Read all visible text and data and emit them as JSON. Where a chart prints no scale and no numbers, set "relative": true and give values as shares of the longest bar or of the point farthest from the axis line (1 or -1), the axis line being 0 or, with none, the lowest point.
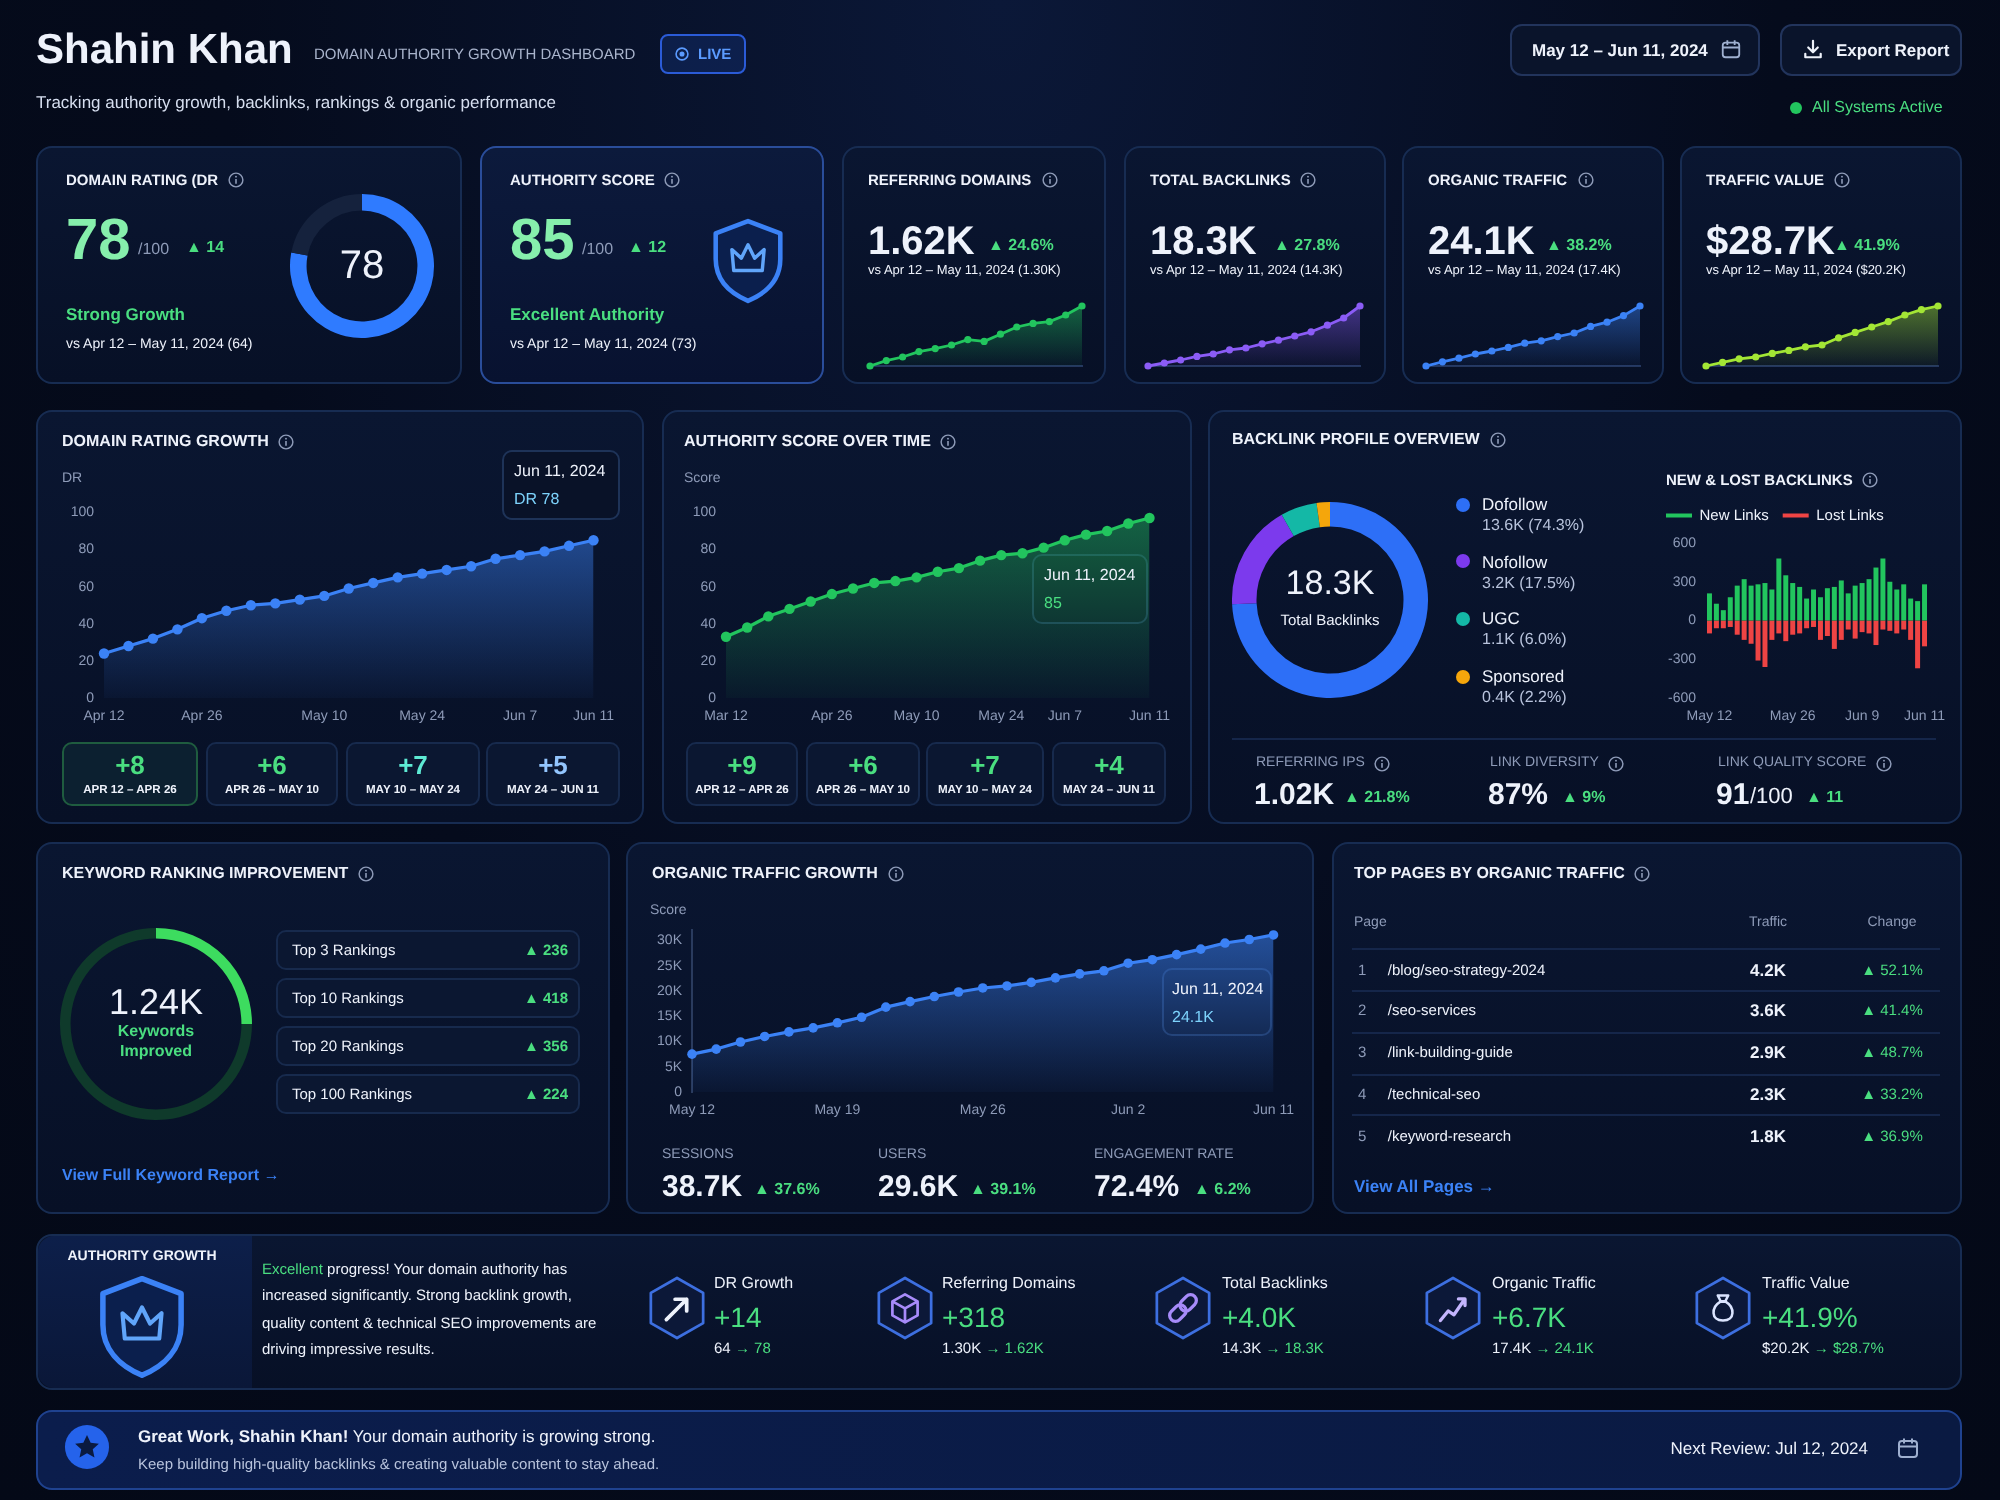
{
  "chart_data": [
    {
      "type": "other",
      "title": "Shahin Khan",
      "subtitle": "DOMAIN AUTHORITY GROWTH DASHBOARD",
      "annotations": [
        "LIVE",
        "Tracking authority growth, backlinks, rankings & organic performance",
        "May 12 – Jun 11, 2024",
        "Export Report",
        "All Systems Active"
      ]
    },
    {
      "type": "donut",
      "title": "DOMAIN RATING (DR",
      "categories": [
        null,
        null
      ],
      "values": [
        78,
        22
      ],
      "colors": [
        "#2f7bff",
        "#15223d"
      ],
      "annotations": [
        "78",
        "/100",
        "▲ 14",
        "Strong Growth",
        "vs Apr 12 – May 11, 2024 (64)",
        "78"
      ]
    },
    {
      "type": "other",
      "title": "AUTHORITY SCORE",
      "annotations": [
        "85",
        "/100",
        "▲ 12",
        "Excellent Authority",
        "vs Apr 12 – May 11, 2024 (73)"
      ]
    },
    {
      "type": "area",
      "title": "REFERRING DOMAINS",
      "relative": true,
      "categories": [
        null,
        null,
        null,
        null,
        null,
        null,
        null,
        null,
        null,
        null,
        null,
        null,
        null,
        null
      ],
      "values": [
        0,
        0.09,
        0.15,
        0.24,
        0.29,
        0.35,
        0.44,
        0.41,
        0.53,
        0.65,
        0.71,
        0.74,
        0.85,
        1
      ],
      "color": "#22c55e",
      "marker": "circle",
      "annotations": [
        "1.62K",
        "▲ 24.6%",
        "vs Apr 12 – May 11, 2024 (1.30K)"
      ]
    },
    {
      "type": "area",
      "title": "TOTAL BACKLINKS",
      "relative": true,
      "categories": [
        null,
        null,
        null,
        null,
        null,
        null,
        null,
        null,
        null,
        null,
        null,
        null,
        null,
        null
      ],
      "values": [
        0,
        0.05,
        0.1,
        0.16,
        0.2,
        0.27,
        0.3,
        0.37,
        0.43,
        0.5,
        0.57,
        0.68,
        0.8,
        1
      ],
      "color": "#8b5cf6",
      "marker": "circle",
      "annotations": [
        "18.3K",
        "▲ 27.8%",
        "vs Apr 12 – May 11, 2024 (14.3K)"
      ]
    },
    {
      "type": "area",
      "title": "ORGANIC TRAFFIC",
      "relative": true,
      "categories": [
        null,
        null,
        null,
        null,
        null,
        null,
        null,
        null,
        null,
        null,
        null,
        null,
        null,
        null
      ],
      "values": [
        0,
        0.07,
        0.13,
        0.2,
        0.25,
        0.31,
        0.38,
        0.42,
        0.49,
        0.55,
        0.66,
        0.73,
        0.84,
        1
      ],
      "color": "#3b82f6",
      "marker": "circle",
      "annotations": [
        "24.1K",
        "▲ 38.2%",
        "vs Apr 12 – May 11, 2024 (17.4K)"
      ]
    },
    {
      "type": "area",
      "title": "TRAFFIC VALUE",
      "relative": true,
      "categories": [
        null,
        null,
        null,
        null,
        null,
        null,
        null,
        null,
        null,
        null,
        null,
        null,
        null,
        null,
        null
      ],
      "values": [
        0,
        0.06,
        0.12,
        0.15,
        0.21,
        0.26,
        0.32,
        0.35,
        0.47,
        0.56,
        0.65,
        0.74,
        0.85,
        0.94,
        1
      ],
      "color": "#a3e635",
      "marker": "circle",
      "annotations": [
        "$28.7K",
        "▲ 41.9%",
        "vs Apr 12 – May 11, 2024 ($20.2K)"
      ]
    },
    {
      "type": "area",
      "title": "DOMAIN RATING GROWTH",
      "ylabel": "DR",
      "categories": [
        "Apr 12",
        null,
        null,
        null,
        "Apr 26",
        null,
        null,
        null,
        null,
        "May 10",
        null,
        null,
        null,
        "May 24",
        null,
        null,
        null,
        "Jun 7",
        null,
        null,
        "Jun 11"
      ],
      "values": [
        24,
        28,
        32,
        37,
        43,
        47,
        50,
        51,
        53,
        55,
        59,
        62,
        65,
        67,
        69,
        71,
        75,
        77,
        79,
        82,
        85
      ],
      "color": "#3b82f6",
      "marker": "circle",
      "ylim": [
        0,
        100
      ],
      "yticks": [
        0,
        20,
        40,
        60,
        80,
        100
      ],
      "annotations": [
        "Jun 11, 2024",
        "DR 78",
        "+8",
        "APR 12 – APR 26",
        "+6",
        "APR 26 – MAY 10",
        "+7",
        "MAY 10 – MAY 24",
        "+5",
        "MAY 24 – JUN 11"
      ]
    },
    {
      "type": "area",
      "title": "AUTHORITY SCORE OVER TIME",
      "ylabel": "Score",
      "categories": [
        "Mar 12",
        null,
        null,
        null,
        null,
        "Apr 26",
        null,
        null,
        null,
        "May 10",
        null,
        null,
        null,
        "May 24",
        null,
        null,
        "Jun 7",
        null,
        null,
        null,
        "Jun 11"
      ],
      "values": [
        33,
        38,
        44,
        48,
        52,
        56,
        59,
        62,
        63,
        65,
        68,
        70,
        74,
        77,
        78,
        81,
        85,
        88,
        90,
        94,
        97
      ],
      "color": "#22c55e",
      "marker": "circle",
      "ylim": [
        0,
        100
      ],
      "yticks": [
        0,
        20,
        40,
        60,
        80,
        100
      ],
      "annotations": [
        "Jun 11, 2024",
        "85",
        "+9",
        "APR 12 – APR 26",
        "+6",
        "APR 26 – MAY 10",
        "+7",
        "MAY 10 – MAY 24",
        "+4",
        "MAY 24 – JUN 11"
      ]
    },
    {
      "type": "donut",
      "title": "BACKLINK PROFILE OVERVIEW",
      "categories": [
        "Dofollow",
        "Nofollow",
        "UGC",
        "Sponsored"
      ],
      "values": [
        74.3,
        17.5,
        6.0,
        2.2
      ],
      "value_labels": [
        "13.6K (74.3%)",
        "3.2K (17.5%)",
        "1.1K (6.0%)",
        "0.4K (2.2%)"
      ],
      "colors": [
        "#2d6ff7",
        "#7c3aed",
        "#14b8a6",
        "#f5a60b"
      ],
      "legend": "right",
      "annotations": [
        "18.3K",
        "Total Backlinks",
        "REFERRING IPS",
        "1.02K",
        "▲ 21.8%",
        "LINK DIVERSITY",
        "87%",
        "▲ 9%",
        "LINK QUALITY SCORE",
        "91",
        "/100",
        "▲ 11"
      ]
    },
    {
      "type": "bar",
      "title": "NEW & LOST BACKLINKS",
      "stacked": true,
      "categories": [
        "May 12",
        null,
        null,
        null,
        null,
        null,
        null,
        null,
        null,
        null,
        null,
        null,
        "May 26",
        null,
        null,
        null,
        null,
        null,
        null,
        null,
        null,
        null,
        "Jun 9",
        null,
        null,
        null,
        null,
        null,
        null,
        null,
        null,
        "Jun 11"
      ],
      "series": [
        {
          "name": "New Links",
          "color": "#22c55e",
          "values": [
            210,
            130,
            80,
            180,
            270,
            320,
            270,
            280,
            290,
            240,
            480,
            350,
            290,
            260,
            170,
            240,
            180,
            250,
            260,
            310,
            210,
            270,
            290,
            320,
            410,
            480,
            300,
            240,
            280,
            170,
            150,
            280
          ]
        },
        {
          "name": "Lost Links",
          "color": "#ef4444",
          "values": [
            -100,
            -60,
            -60,
            -50,
            -110,
            -150,
            -180,
            -310,
            -360,
            -150,
            -100,
            -160,
            -110,
            -100,
            -60,
            -50,
            -150,
            -120,
            -220,
            -150,
            -70,
            -140,
            -90,
            -100,
            -190,
            -70,
            -80,
            -100,
            -70,
            -150,
            -370,
            -200
          ]
        }
      ],
      "ylim": [
        -600,
        600
      ],
      "yticks": [
        -600,
        -300,
        0,
        300,
        600
      ],
      "legend": "top left"
    },
    {
      "type": "donut",
      "title": "KEYWORD RANKING IMPROVEMENT",
      "categories": [
        null,
        null
      ],
      "values": [
        25,
        75
      ],
      "colors": [
        "#3ddc5f",
        "#0f3a2b"
      ],
      "annotations": [
        "1.24K",
        "Keywords Improved",
        "Top 3 Rankings",
        "▲ 236",
        "Top 10 Rankings",
        "▲ 418",
        "Top 20 Rankings",
        "▲ 356",
        "Top 100 Rankings",
        "▲ 224",
        "View Full Keyword Report →"
      ]
    },
    {
      "type": "area",
      "title": "ORGANIC TRAFFIC GROWTH",
      "ylabel": "Score",
      "categories": [
        "May 12",
        null,
        null,
        null,
        null,
        null,
        "May 19",
        null,
        null,
        null,
        null,
        null,
        "May 26",
        null,
        null,
        null,
        null,
        null,
        "Jun 2",
        null,
        null,
        null,
        null,
        null,
        "Jun 11"
      ],
      "values": [
        7500,
        8500,
        9900,
        11000,
        11900,
        12700,
        13700,
        14800,
        16800,
        17900,
        18900,
        19800,
        20600,
        21000,
        21700,
        22600,
        23400,
        24000,
        25500,
        26200,
        27200,
        28300,
        29500,
        30200,
        31100
      ],
      "color": "#3b82f6",
      "marker": "circle",
      "ylim": [
        0,
        32000
      ],
      "yticks": [
        0,
        {
          "value": 5000,
          "label": "5K"
        },
        {
          "value": 10000,
          "label": "10K"
        },
        {
          "value": 15000,
          "label": "15K"
        },
        {
          "value": 20000,
          "label": "20K"
        },
        {
          "value": 25000,
          "label": "25K"
        },
        {
          "value": 30000,
          "label": "30K"
        }
      ],
      "annotations": [
        "Jun 11, 2024",
        "24.1K",
        "SESSIONS",
        "38.7K",
        "▲ 37.6%",
        "USERS",
        "29.6K",
        "▲ 39.1%",
        "ENGAGEMENT RATE",
        "72.4%",
        "▲ 6.2%"
      ]
    },
    {
      "type": "other",
      "title": "TOP PAGES BY ORGANIC TRAFFIC",
      "annotations": [
        "Page",
        "Traffic",
        "Change",
        "1 /blog/seo-strategy-2024",
        "4.2K",
        "▲ 52.1%",
        "2 /seo-services",
        "3.6K",
        "▲ 41.4%",
        "3 /link-building-guide",
        "2.9K",
        "▲ 48.7%",
        "4 /technical-seo",
        "2.3K",
        "▲ 33.2%",
        "5 /keyword-research",
        "1.8K",
        "▲ 36.9%",
        "View All Pages →"
      ]
    },
    {
      "type": "other",
      "title": "AUTHORITY GROWTH",
      "annotations": [
        "Excellent progress! Your domain authority has increased significantly. Strong backlink growth, quality content & technical SEO improvements are driving impressive results.",
        "DR Growth",
        "+14",
        "64",
        "→ 78",
        "Referring Domains",
        "+318",
        "1.30K",
        "→ 1.62K",
        "Total Backlinks",
        "+4.0K",
        "14.3K",
        "→ 18.3K",
        "Organic Traffic",
        "+6.7K",
        "17.4K",
        "→ 24.1K",
        "Traffic Value",
        "+41.9%",
        "$20.2K",
        "→ $28.7%"
      ]
    },
    {
      "type": "other",
      "annotations": [
        "Great Work, Shahin Khan!",
        "Your domain authority is growing strong.",
        "Keep building high-quality backlinks & creating valuable content to stay ahead.",
        "Next Review: Jul 12, 2024"
      ]
    }
  ]
}
